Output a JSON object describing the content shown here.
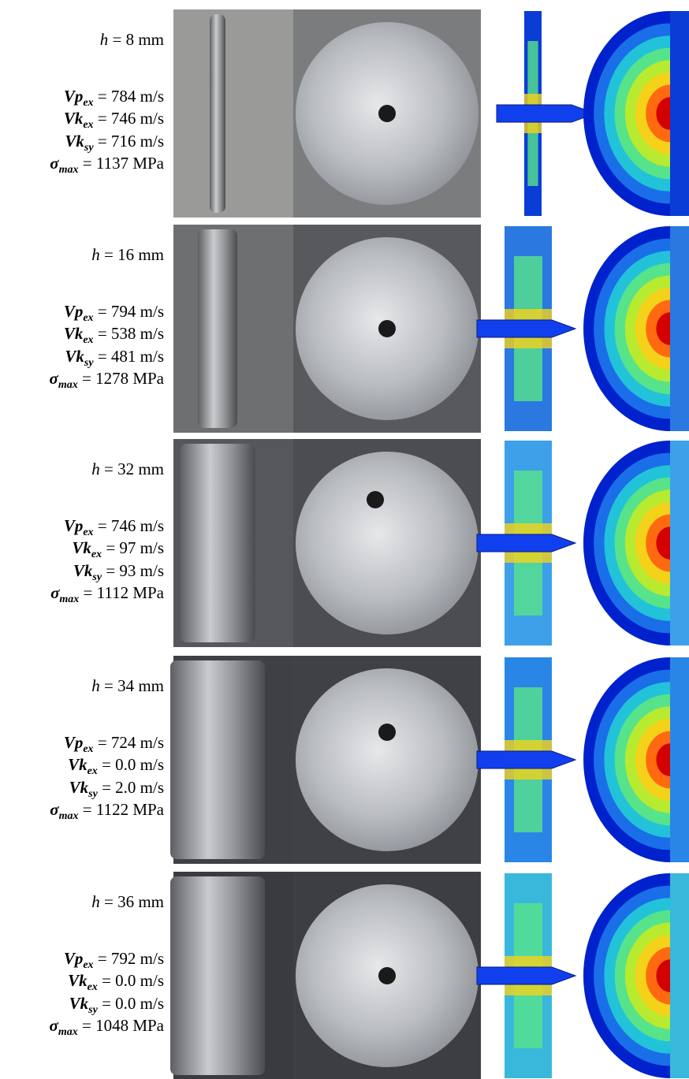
{
  "rows": [
    {
      "thickness": {
        "symbol": "h",
        "text": "= 8 mm"
      },
      "params": [
        {
          "symbol": "Vp",
          "sub": "ex",
          "text": "= 784 m/s"
        },
        {
          "symbol": "Vk",
          "sub": "ex",
          "text": "= 746 m/s"
        },
        {
          "symbol": "Vk",
          "sub": "sy",
          "text": "= 716 m/s"
        },
        {
          "symbol": "σ",
          "sub": "max",
          "text": "= 1137 MPa"
        }
      ]
    },
    {
      "thickness": {
        "symbol": "h",
        "text": "= 16 mm"
      },
      "params": [
        {
          "symbol": "Vp",
          "sub": "ex",
          "text": "= 794 m/s"
        },
        {
          "symbol": "Vk",
          "sub": "ex",
          "text": "= 538 m/s"
        },
        {
          "symbol": "Vk",
          "sub": "sy",
          "text": "= 481 m/s"
        },
        {
          "symbol": "σ",
          "sub": "max",
          "text": "= 1278 MPa"
        }
      ]
    },
    {
      "thickness": {
        "symbol": "h",
        "text": "= 32 mm"
      },
      "params": [
        {
          "symbol": "Vp",
          "sub": "ex",
          "text": "= 746 m/s"
        },
        {
          "symbol": "Vk",
          "sub": "ex",
          "text": "= 97 m/s"
        },
        {
          "symbol": "Vk",
          "sub": "sy",
          "text": "= 93 m/s"
        },
        {
          "symbol": "σ",
          "sub": "max",
          "text": "= 1112 MPa"
        }
      ]
    },
    {
      "thickness": {
        "symbol": "h",
        "text": "= 34 mm"
      },
      "params": [
        {
          "symbol": "Vp",
          "sub": "ex",
          "text": "= 724 m/s"
        },
        {
          "symbol": "Vk",
          "sub": "ex",
          "text": "= 0.0 m/s"
        },
        {
          "symbol": "Vk",
          "sub": "sy",
          "text": "= 2.0 m/s"
        },
        {
          "symbol": "σ",
          "sub": "max",
          "text": "= 1122 MPa"
        }
      ]
    },
    {
      "thickness": {
        "symbol": "h",
        "text": "= 36 mm"
      },
      "params": [
        {
          "symbol": "Vp",
          "sub": "ex",
          "text": "= 792 m/s"
        },
        {
          "symbol": "Vk",
          "sub": "ex",
          "text": "= 0.0 m/s"
        },
        {
          "symbol": "Vk",
          "sub": "sy",
          "text": "= 0.0 m/s"
        },
        {
          "symbol": "σ",
          "sub": "max",
          "text": "= 1048 MPa"
        }
      ]
    }
  ]
}
